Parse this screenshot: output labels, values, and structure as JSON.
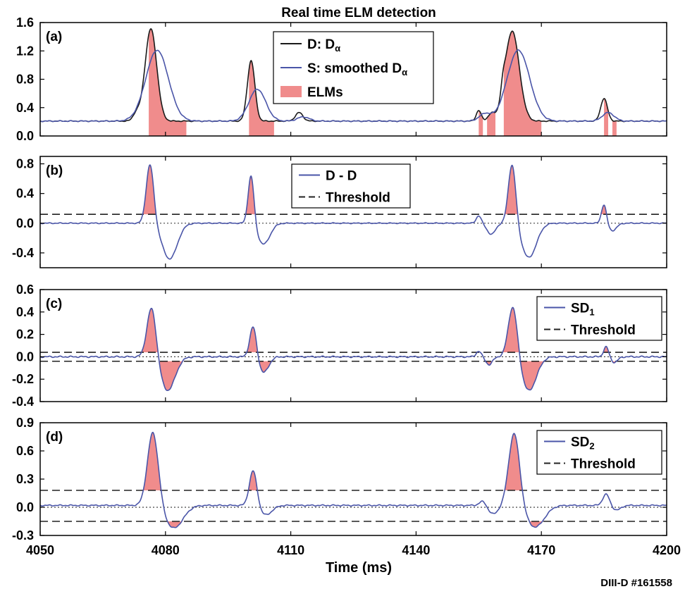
{
  "chart_data": {
    "type": "line",
    "title": "Real time ELM detection",
    "xlabel": "Time (ms)",
    "credit": "DIII-D #161558",
    "xlim": [
      4050,
      4200
    ],
    "xticks": [
      4050,
      4080,
      4110,
      4140,
      4170,
      4200
    ],
    "colors": {
      "raw": "#1a1a1a",
      "smooth": "#4a55a8",
      "elm_fill": "#f08c8c",
      "threshold": "#222222"
    },
    "panels": [
      {
        "label": "(a)",
        "ylim": [
          0,
          1.6
        ],
        "yticks": [
          0.0,
          0.4,
          0.8,
          1.2,
          1.6
        ],
        "ytick_labels": [
          "0.0",
          "0.4",
          "0.8",
          "1.2",
          "1.6"
        ],
        "legend": [
          {
            "kind": "line",
            "color": "raw",
            "text": "D: D",
            "sub": "α"
          },
          {
            "kind": "line",
            "color": "smooth",
            "text": "S: smoothed D",
            "sub": "α"
          },
          {
            "kind": "patch",
            "color": "elm_fill",
            "text": "ELMs",
            "sub": ""
          }
        ],
        "elm_windows": [
          [
            4076,
            4085
          ],
          [
            4100,
            4106
          ],
          [
            4155,
            4156
          ],
          [
            4157,
            4159
          ],
          [
            4161,
            4170
          ],
          [
            4185,
            4186
          ],
          [
            4187,
            4188
          ]
        ],
        "series": [
          {
            "name": "D: Dα",
            "color": "raw",
            "base": 0.21,
            "peaks": [
              [
                4073,
                0.1,
                0.8
              ],
              [
                4076.5,
                1.3,
                1.4
              ],
              [
                4100.5,
                0.85,
                0.9
              ],
              [
                4112,
                0.12,
                0.9
              ],
              [
                4155,
                0.15,
                0.6
              ],
              [
                4158,
                0.1,
                0.8
              ],
              [
                4160.8,
                0.15,
                0.5
              ],
              [
                4163,
                1.27,
                1.7
              ],
              [
                4185,
                0.32,
                0.8
              ]
            ]
          },
          {
            "name": "S: smoothed Dα",
            "color": "smooth",
            "base": 0.21,
            "peaks": [
              [
                4078,
                1.0,
                2.7
              ],
              [
                4102,
                0.45,
                2.0
              ],
              [
                4113,
                0.06,
                1.4
              ],
              [
                4156.5,
                0.1,
                1.4
              ],
              [
                4164.5,
                1.0,
                2.7
              ],
              [
                4186,
                0.12,
                1.4
              ]
            ]
          }
        ]
      },
      {
        "label": "(b)",
        "ylim": [
          -0.6,
          0.9
        ],
        "yticks": [
          -0.4,
          0.0,
          0.4,
          0.8
        ],
        "ytick_labels": [
          "-0.4",
          "0.0",
          "0.4",
          "0.8"
        ],
        "threshold": [
          0.12
        ],
        "zero_line": true,
        "legend": [
          {
            "kind": "line",
            "color": "smooth",
            "text": "D - D",
            "sub": ""
          },
          {
            "kind": "dash",
            "color": "threshold",
            "text": "Threshold",
            "sub": ""
          }
        ],
        "series": [
          {
            "name": "D - D",
            "color": "smooth",
            "base": 0.0,
            "fill_above": 0.12,
            "peaks": [
              [
                4076.3,
                0.8,
                0.9
              ],
              [
                4081,
                -0.48,
                1.8
              ],
              [
                4100.5,
                0.67,
                0.7
              ],
              [
                4103.5,
                -0.28,
                1.5
              ],
              [
                4155,
                0.1,
                0.6
              ],
              [
                4158,
                -0.15,
                1.0
              ],
              [
                4163,
                0.82,
                0.9
              ],
              [
                4167,
                -0.46,
                1.8
              ],
              [
                4185,
                0.26,
                0.6
              ],
              [
                4187,
                -0.1,
                1.0
              ]
            ]
          }
        ]
      },
      {
        "label": "(c)",
        "ylim": [
          -0.4,
          0.6
        ],
        "yticks": [
          -0.4,
          -0.2,
          0.0,
          0.2,
          0.4,
          0.6
        ],
        "ytick_labels": [
          "-0.4",
          "-0.2",
          "0.0",
          "0.2",
          "0.4",
          "0.6"
        ],
        "threshold": [
          0.04,
          -0.04
        ],
        "zero_line": true,
        "legend": [
          {
            "kind": "line",
            "color": "smooth",
            "text": "SD",
            "sub": "1"
          },
          {
            "kind": "dash",
            "color": "threshold",
            "text": "Threshold",
            "sub": ""
          }
        ],
        "series": [
          {
            "name": "SD1",
            "color": "smooth",
            "base": 0.0,
            "fill_above": 0.04,
            "fill_below": -0.04,
            "peaks": [
              [
                4076.7,
                0.46,
                1.1
              ],
              [
                4080.5,
                -0.3,
                1.8
              ],
              [
                4101,
                0.28,
                0.8
              ],
              [
                4103.5,
                -0.14,
                1.2
              ],
              [
                4155,
                0.05,
                0.6
              ],
              [
                4157.5,
                -0.07,
                0.8
              ],
              [
                4163.2,
                0.47,
                1.1
              ],
              [
                4167,
                -0.3,
                1.8
              ],
              [
                4185.5,
                0.09,
                0.6
              ],
              [
                4187.5,
                -0.05,
                0.8
              ]
            ]
          }
        ]
      },
      {
        "label": "(d)",
        "ylim": [
          -0.3,
          0.9
        ],
        "yticks": [
          -0.3,
          0.0,
          0.3,
          0.6,
          0.9
        ],
        "ytick_labels": [
          "-0.3",
          "0.0",
          "0.3",
          "0.6",
          "0.9"
        ],
        "threshold": [
          0.18,
          -0.15
        ],
        "zero_line": true,
        "legend": [
          {
            "kind": "line",
            "color": "smooth",
            "text": "SD",
            "sub": "2"
          },
          {
            "kind": "dash",
            "color": "threshold",
            "text": "Threshold",
            "sub": ""
          }
        ],
        "series": [
          {
            "name": "SD2",
            "color": "smooth",
            "base": 0.02,
            "fill_above": 0.18,
            "fill_below": -0.15,
            "peaks": [
              [
                4077,
                0.79,
                1.3
              ],
              [
                4082,
                -0.24,
                2.2
              ],
              [
                4101,
                0.38,
                0.9
              ],
              [
                4104,
                -0.1,
                1.5
              ],
              [
                4156,
                0.05,
                0.8
              ],
              [
                4158.5,
                -0.09,
                1.2
              ],
              [
                4163.5,
                0.78,
                1.3
              ],
              [
                4168.5,
                -0.23,
                2.2
              ],
              [
                4185.5,
                0.12,
                0.8
              ],
              [
                4188,
                -0.05,
                1.0
              ]
            ]
          }
        ]
      }
    ]
  }
}
